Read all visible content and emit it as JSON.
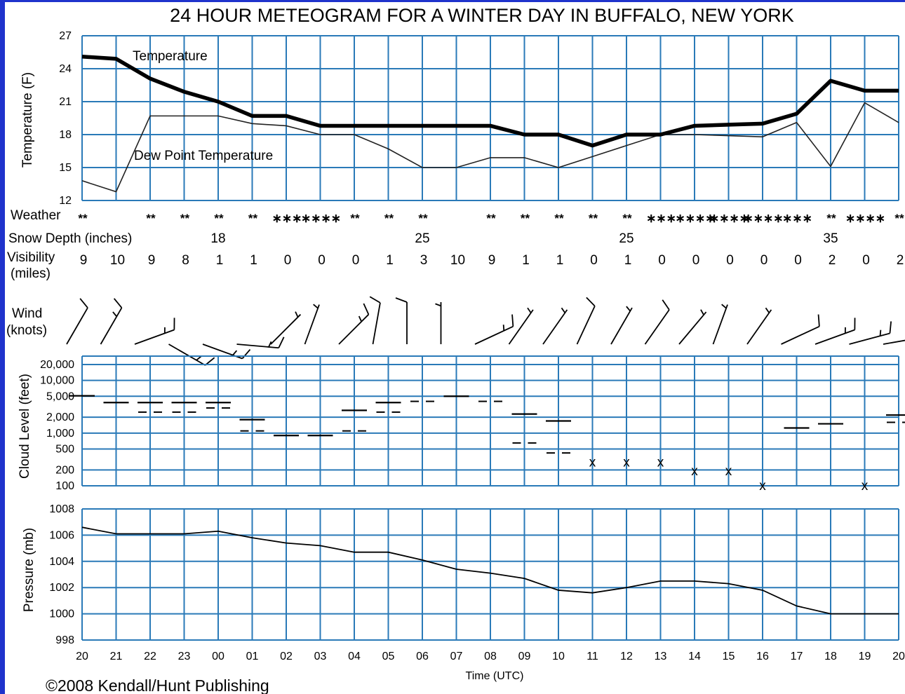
{
  "title": "24 HOUR METEOGRAM FOR A WINTER DAY IN BUFFALO, NEW YORK",
  "copyright": "©2008 Kendall/Hunt Publishing",
  "time_label": "Time (UTC)",
  "hours": [
    "20",
    "21",
    "22",
    "23",
    "00",
    "01",
    "02",
    "03",
    "04",
    "05",
    "06",
    "07",
    "08",
    "09",
    "10",
    "11",
    "12",
    "13",
    "14",
    "15",
    "16",
    "17",
    "18",
    "19",
    "20"
  ],
  "row_labels": {
    "weather": "Weather",
    "snow_depth": "Snow Depth (inches)",
    "visibility_1": "Visibility",
    "visibility_2": "(miles)",
    "wind_1": "Wind",
    "wind_2": "(knots)"
  },
  "weather": [
    "**",
    "",
    "**",
    "**",
    "**",
    "**",
    "∗∗∗",
    "∗∗∗∗",
    "**",
    "**",
    "**",
    "",
    "**",
    "**",
    "**",
    "**",
    "**",
    "∗∗∗",
    "∗∗∗∗",
    "∗∗∗∗",
    "∗∗∗∗",
    "∗∗∗",
    "**",
    "∗∗∗∗",
    "**"
  ],
  "snow_depth": [
    {
      "hour": "00",
      "value": "18"
    },
    {
      "hour": "06",
      "value": "25"
    },
    {
      "hour": "12",
      "value": "25"
    },
    {
      "hour": "18",
      "value": "35"
    }
  ],
  "visibility": [
    "9",
    "10",
    "9",
    "8",
    "1",
    "1",
    "0",
    "0",
    "0",
    "1",
    "3",
    "10",
    "9",
    "1",
    "1",
    "0",
    "1",
    "0",
    "0",
    "0",
    "0",
    "0",
    "2",
    "0",
    "2"
  ],
  "wind": [
    {
      "dir": 210,
      "speed": 10
    },
    {
      "dir": 210,
      "speed": 15
    },
    {
      "dir": 250,
      "speed": 15
    },
    {
      "dir": 300,
      "speed": 15
    },
    {
      "dir": 290,
      "speed": 15
    },
    {
      "dir": 275,
      "speed": 15
    },
    {
      "dir": 225,
      "speed": 5
    },
    {
      "dir": 200,
      "speed": 5
    },
    {
      "dir": 225,
      "speed": 15
    },
    {
      "dir": 190,
      "speed": 10
    },
    {
      "dir": 180,
      "speed": 10
    },
    {
      "dir": 180,
      "speed": 5
    },
    {
      "dir": 245,
      "speed": 15
    },
    {
      "dir": 215,
      "speed": 5
    },
    {
      "dir": 215,
      "speed": 5
    },
    {
      "dir": 205,
      "speed": 10
    },
    {
      "dir": 210,
      "speed": 5
    },
    {
      "dir": 215,
      "speed": 10
    },
    {
      "dir": 220,
      "speed": 5
    },
    {
      "dir": 200,
      "speed": 5
    },
    {
      "dir": 215,
      "speed": 5
    },
    {
      "dir": 245,
      "speed": 10
    },
    {
      "dir": 250,
      "speed": 15
    },
    {
      "dir": 255,
      "speed": 15
    },
    {
      "dir": 260,
      "speed": 15
    }
  ],
  "chart_data": [
    {
      "type": "line",
      "ylabel": "Temperature (F)",
      "ylim": [
        12,
        27
      ],
      "yticks": [
        12,
        15,
        18,
        21,
        24,
        27
      ],
      "x": [
        "20",
        "21",
        "22",
        "23",
        "00",
        "01",
        "02",
        "03",
        "04",
        "05",
        "06",
        "07",
        "08",
        "09",
        "10",
        "11",
        "12",
        "13",
        "14",
        "15",
        "16",
        "17",
        "18",
        "19",
        "20"
      ],
      "series": [
        {
          "name": "Temperature",
          "values": [
            25.1,
            24.9,
            23.1,
            21.9,
            21.0,
            19.7,
            19.7,
            18.8,
            18.8,
            18.8,
            18.8,
            18.8,
            18.8,
            18.0,
            18.0,
            17.0,
            18.0,
            18.0,
            18.8,
            18.9,
            19.0,
            19.9,
            22.9,
            22.0,
            22.0
          ]
        },
        {
          "name": "Dew Point Temperature",
          "values": [
            13.8,
            12.8,
            19.7,
            19.7,
            19.7,
            19.0,
            18.8,
            18.0,
            18.0,
            16.7,
            15.0,
            15.0,
            15.9,
            15.9,
            15.0,
            16.0,
            17.0,
            18.0,
            18.0,
            17.9,
            17.8,
            19.1,
            15.1,
            20.9,
            19.1
          ]
        }
      ]
    },
    {
      "type": "scatter",
      "ylabel": "Cloud Level (feet)",
      "yscale": "log",
      "ylim": [
        100,
        20000
      ],
      "yticks": [
        "20,000",
        "10,000",
        "5,000",
        "2,000",
        "1,000",
        "500",
        "200",
        "100"
      ],
      "layers": [
        {
          "hour": "20",
          "base": 5100,
          "style": "solid"
        },
        {
          "hour": "21",
          "base": 3800,
          "style": "solid"
        },
        {
          "hour": "22",
          "base": 3800,
          "style": "solid"
        },
        {
          "hour": "22",
          "base": 2500,
          "style": "dashed"
        },
        {
          "hour": "23",
          "base": 3800,
          "style": "solid"
        },
        {
          "hour": "23",
          "base": 2500,
          "style": "dashed"
        },
        {
          "hour": "00",
          "base": 3800,
          "style": "solid"
        },
        {
          "hour": "00",
          "base": 3000,
          "style": "dashed"
        },
        {
          "hour": "01",
          "base": 1800,
          "style": "solid"
        },
        {
          "hour": "01",
          "base": 1100,
          "style": "dashed"
        },
        {
          "hour": "02",
          "base": 900,
          "style": "solid"
        },
        {
          "hour": "03",
          "base": 900,
          "style": "solid"
        },
        {
          "hour": "04",
          "base": 2700,
          "style": "solid"
        },
        {
          "hour": "04",
          "base": 1100,
          "style": "dashed"
        },
        {
          "hour": "05",
          "base": 3800,
          "style": "solid"
        },
        {
          "hour": "05",
          "base": 2500,
          "style": "dashed"
        },
        {
          "hour": "06",
          "base": 4000,
          "style": "dashed"
        },
        {
          "hour": "07",
          "base": 5000,
          "style": "solid"
        },
        {
          "hour": "08",
          "base": 4000,
          "style": "dashed"
        },
        {
          "hour": "09",
          "base": 2300,
          "style": "solid"
        },
        {
          "hour": "09",
          "base": 650,
          "style": "dashed"
        },
        {
          "hour": "10",
          "base": 1700,
          "style": "solid"
        },
        {
          "hour": "10",
          "base": 420,
          "style": "dashed"
        },
        {
          "hour": "11",
          "base": 280,
          "style": "x"
        },
        {
          "hour": "12",
          "base": 280,
          "style": "x"
        },
        {
          "hour": "13",
          "base": 280,
          "style": "x"
        },
        {
          "hour": "14",
          "base": 190,
          "style": "x"
        },
        {
          "hour": "15",
          "base": 190,
          "style": "x"
        },
        {
          "hour": "16",
          "base": 100,
          "style": "x"
        },
        {
          "hour": "17",
          "base": 1250,
          "style": "solid"
        },
        {
          "hour": "18",
          "base": 1500,
          "style": "solid"
        },
        {
          "hour": "19",
          "base": 100,
          "style": "x"
        },
        {
          "hour": "20",
          "base": 2200,
          "style": "solid"
        },
        {
          "hour": "20",
          "base": 1600,
          "style": "dashed"
        }
      ]
    },
    {
      "type": "line",
      "ylabel": "Pressure (mb)",
      "xlabel": "Time (UTC)",
      "ylim": [
        998,
        1008
      ],
      "yticks": [
        998,
        1000,
        1002,
        1004,
        1006,
        1008
      ],
      "x": [
        "20",
        "21",
        "22",
        "23",
        "00",
        "01",
        "02",
        "03",
        "04",
        "05",
        "06",
        "07",
        "08",
        "09",
        "10",
        "11",
        "12",
        "13",
        "14",
        "15",
        "16",
        "17",
        "18",
        "19",
        "20"
      ],
      "series": [
        {
          "values": [
            1006.6,
            1006.1,
            1006.1,
            1006.1,
            1006.3,
            1005.8,
            1005.4,
            1005.2,
            1004.7,
            1004.7,
            1004.1,
            1003.4,
            1003.1,
            1002.7,
            1001.8,
            1001.6,
            1002.0,
            1002.5,
            1002.5,
            1002.3,
            1001.8,
            1000.6,
            1000.0,
            1000.0,
            1000.0
          ]
        }
      ]
    }
  ]
}
